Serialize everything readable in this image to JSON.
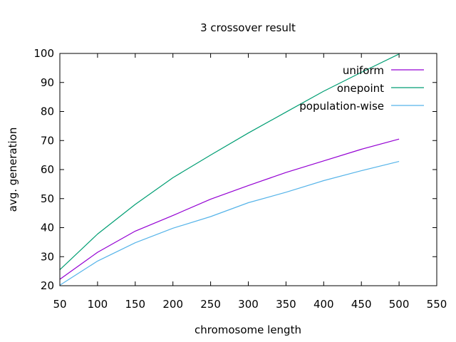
{
  "chart_data": {
    "type": "line",
    "title": "3 crossover result",
    "xlabel": "chromosome length",
    "ylabel": "avg. generation",
    "xlim": [
      50,
      550
    ],
    "ylim": [
      20,
      100
    ],
    "xticks": [
      50,
      100,
      150,
      200,
      250,
      300,
      350,
      400,
      450,
      500,
      550
    ],
    "yticks": [
      20,
      30,
      40,
      50,
      60,
      70,
      80,
      90,
      100
    ],
    "grid": false,
    "legend_position": "top-right",
    "x": [
      50,
      100,
      150,
      200,
      250,
      300,
      350,
      400,
      450,
      500
    ],
    "series": [
      {
        "name": "uniform",
        "color": "#9400d3",
        "values": [
          22.2,
          31.5,
          38.8,
          44.2,
          49.8,
          54.5,
          59.0,
          63.0,
          67.0,
          70.5
        ]
      },
      {
        "name": "onepoint",
        "color": "#009e73",
        "values": [
          25.5,
          37.8,
          48.0,
          57.2,
          65.0,
          72.6,
          79.8,
          87.0,
          93.5,
          99.8
        ]
      },
      {
        "name": "population-wise",
        "color": "#56b4e9",
        "values": [
          20.2,
          28.5,
          34.8,
          39.8,
          43.8,
          48.6,
          52.2,
          56.2,
          59.6,
          62.8
        ]
      }
    ]
  }
}
